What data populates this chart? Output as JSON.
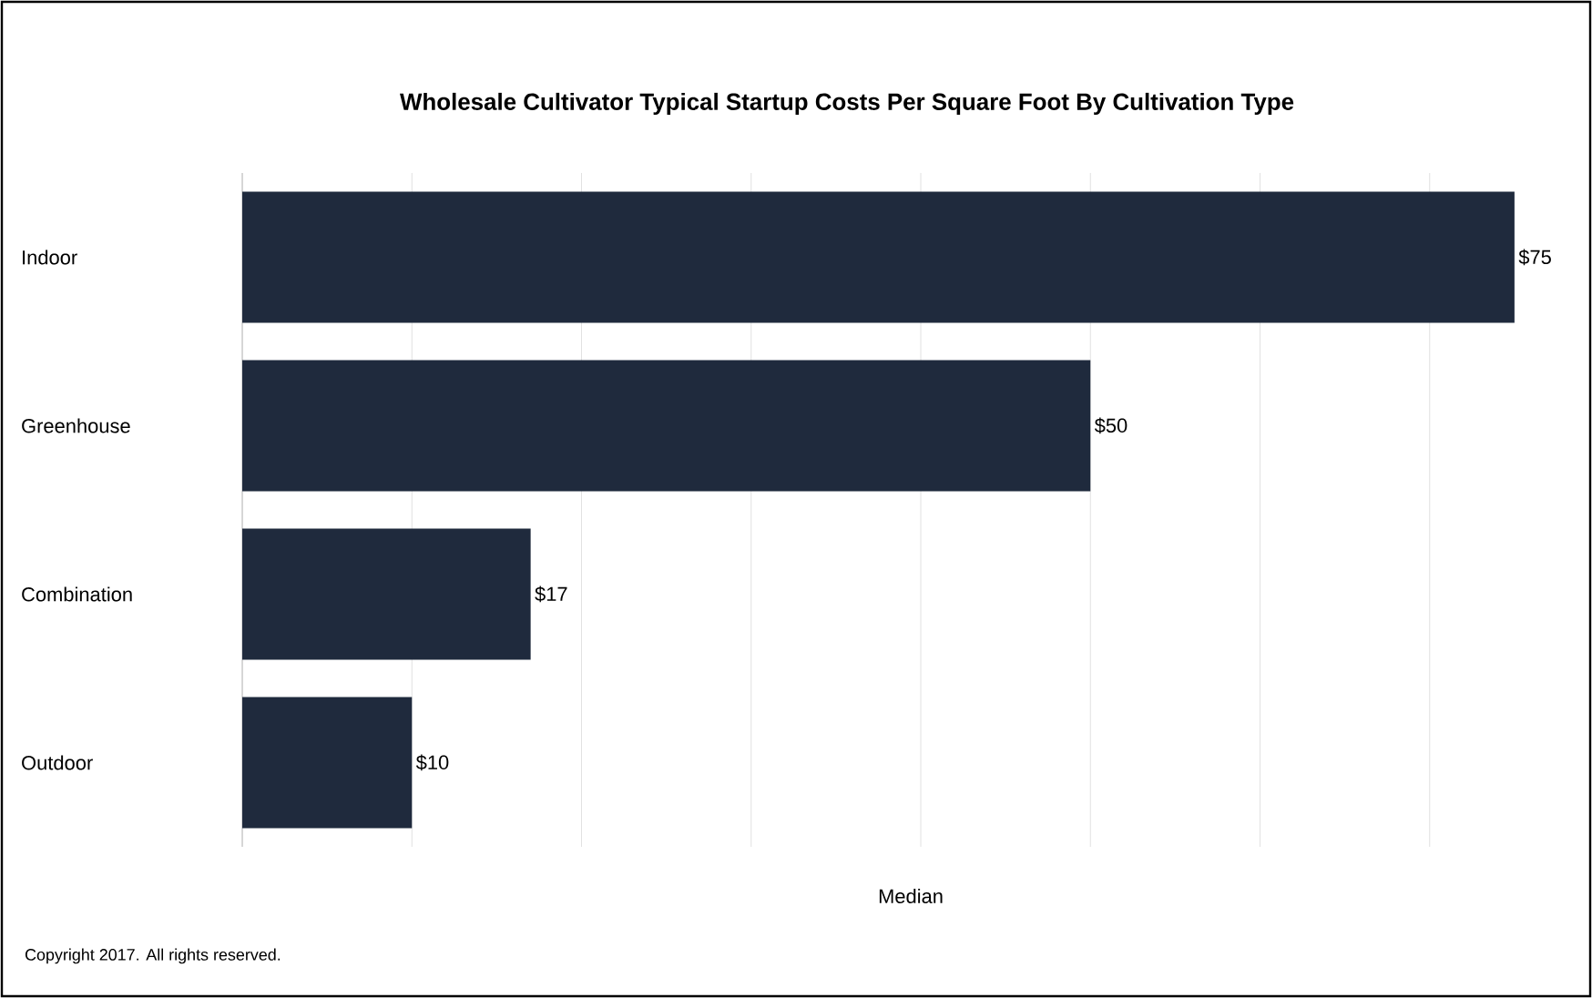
{
  "chart_data": {
    "type": "bar",
    "orientation": "horizontal",
    "title": "Wholesale Cultivator Typical Startup Costs Per Square Foot By Cultivation Type",
    "xlabel": "Median",
    "categories": [
      "Indoor",
      "Greenhouse",
      "Combination",
      "Outdoor"
    ],
    "values": [
      75,
      50,
      17,
      10
    ],
    "value_labels": [
      "$75",
      "$50",
      "$17",
      "$10"
    ],
    "color": "#1f2a3d",
    "xlim": [
      0,
      80
    ],
    "xticks": [
      {
        "value": 0,
        "label": null
      },
      {
        "value": 10,
        "label": null
      },
      {
        "value": 20,
        "label": null
      },
      {
        "value": 30,
        "label": null
      },
      {
        "value": 40,
        "label": null
      },
      {
        "value": 50,
        "label": null
      },
      {
        "value": 60,
        "label": null
      },
      {
        "value": 70,
        "label": null
      }
    ],
    "grid": "x",
    "tick_labels": "y",
    "annotations": [
      "Copyright 2017. All rights reserved."
    ]
  }
}
